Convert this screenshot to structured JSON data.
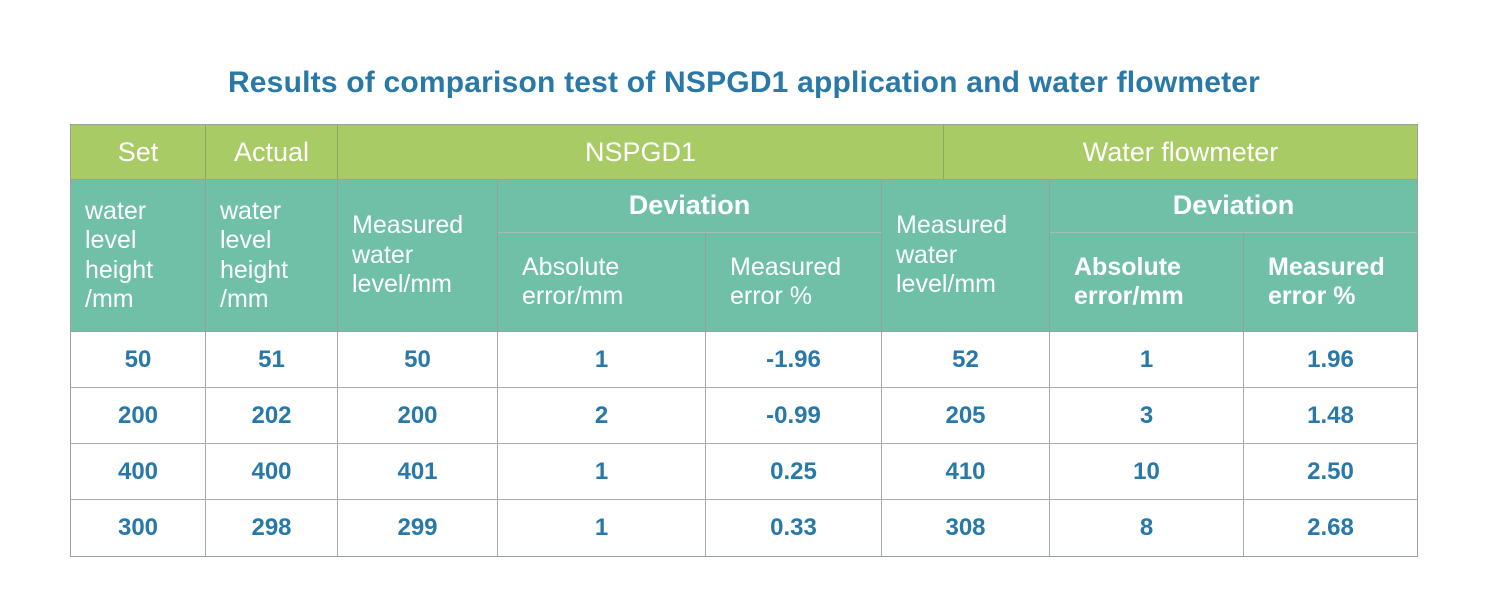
{
  "title": "Results of comparison test of NSPGD1 application and water flowmeter",
  "colors": {
    "header_green": "#a9cb65",
    "header_teal": "#6fc0a7",
    "data_text": "#2878a8",
    "title_text": "#2878a8"
  },
  "table": {
    "group_headers": {
      "set": "Set",
      "actual": "Actual",
      "nspgd1": "NSPGD1",
      "flowmeter": "Water flowmeter"
    },
    "column_headers": {
      "set_sub": "water\nlevel\nheight\n/mm",
      "actual_sub": "water\nlevel\nheight\n/mm",
      "nspgd1_measured": "Measured\nwater\nlevel/mm",
      "nspgd1_deviation": "Deviation",
      "nspgd1_abs_error": "Absolute\nerror/mm",
      "nspgd1_meas_error": "Measured\nerror %",
      "fm_measured": "Measured\nwater\nlevel/mm",
      "fm_deviation": "Deviation",
      "fm_abs_error": "Absolute\nerror/mm",
      "fm_meas_error": "Measured\nerror %"
    },
    "rows": [
      [
        "50",
        "51",
        "50",
        "1",
        "-1.96",
        "52",
        "1",
        "1.96"
      ],
      [
        "200",
        "202",
        "200",
        "2",
        "-0.99",
        "205",
        "3",
        "1.48"
      ],
      [
        "400",
        "400",
        "401",
        "1",
        "0.25",
        "410",
        "10",
        "2.50"
      ],
      [
        "300",
        "298",
        "299",
        "1",
        "0.33",
        "308",
        "8",
        "2.68"
      ]
    ]
  },
  "chart_data": {
    "type": "table",
    "title": "Results of comparison test of NSPGD1 application and water flowmeter",
    "column_groups": [
      "Set",
      "Actual",
      "NSPGD1",
      "Water flowmeter"
    ],
    "columns": [
      "Set water level height /mm",
      "Actual water level height /mm",
      "NSPGD1 Measured water level/mm",
      "NSPGD1 Deviation Absolute error/mm",
      "NSPGD1 Deviation Measured error %",
      "Water flowmeter Measured water level/mm",
      "Water flowmeter Deviation Absolute error/mm",
      "Water flowmeter Deviation Measured error %"
    ],
    "rows": [
      [
        50,
        51,
        50,
        1,
        -1.96,
        52,
        1,
        1.96
      ],
      [
        200,
        202,
        200,
        2,
        -0.99,
        205,
        3,
        1.48
      ],
      [
        400,
        400,
        401,
        1,
        0.25,
        410,
        10,
        2.5
      ],
      [
        300,
        298,
        299,
        1,
        0.33,
        308,
        8,
        2.68
      ]
    ]
  }
}
